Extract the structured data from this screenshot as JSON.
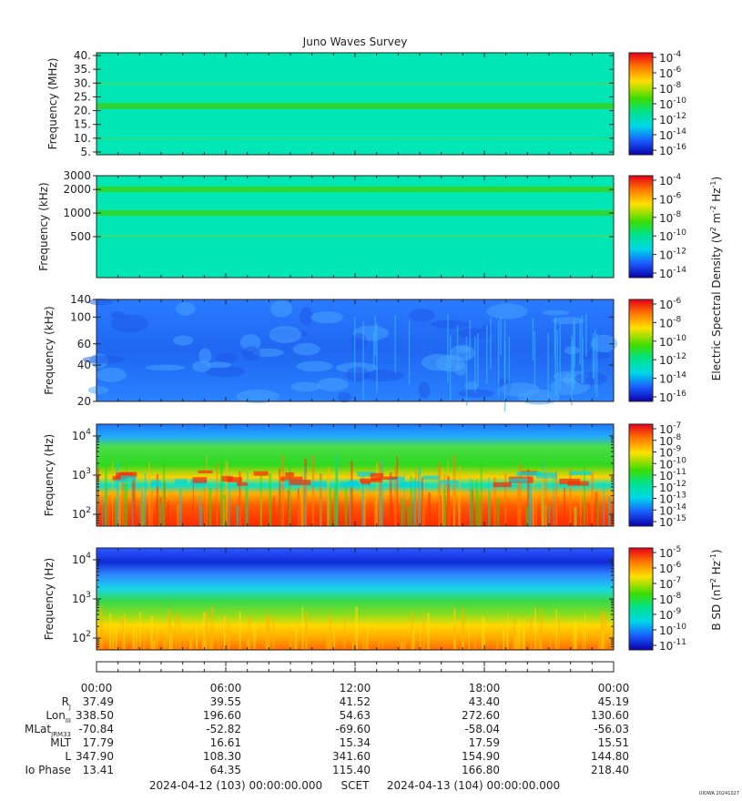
{
  "chart_data": {
    "type": "heatmap",
    "title": "Juno Waves Survey",
    "time_ticks": [
      "00:00",
      "06:00",
      "12:00",
      "18:00",
      "00:00"
    ],
    "panels": [
      {
        "ylabel": "Frequency (MHz)",
        "yscale": "linear",
        "ylim": [
          4,
          41
        ],
        "yticks": [
          "40.",
          "35.",
          "30.",
          "25.",
          "20.",
          "15.",
          "10.",
          "5."
        ],
        "ytick_values": [
          40,
          35,
          30,
          25,
          20,
          15,
          10,
          5
        ],
        "colorbar_ticks": [
          "-4",
          "-6",
          "-8",
          "-10",
          "-12",
          "-14",
          "-16"
        ]
      },
      {
        "ylabel": "Frequency (kHz)",
        "yscale": "log",
        "ylim": [
          150,
          3000
        ],
        "yticks": [
          "3000",
          "2000",
          "1000",
          "500"
        ],
        "ytick_values": [
          3000,
          2000,
          1000,
          500
        ],
        "colorbar_ticks": [
          "-4",
          "-6",
          "-8",
          "-10",
          "-12",
          "-14"
        ]
      },
      {
        "ylabel": "Frequency (kHz)",
        "yscale": "log",
        "ylim": [
          20,
          140
        ],
        "yticks": [
          "140",
          "100",
          "60",
          "40",
          "20"
        ],
        "ytick_values": [
          140,
          100,
          60,
          40,
          20
        ],
        "colorbar_ticks": [
          "-6",
          "-8",
          "-10",
          "-12",
          "-14",
          "-16"
        ]
      },
      {
        "ylabel": "Frequency (Hz)",
        "yscale": "log",
        "ylim": [
          50,
          20000
        ],
        "yticks": [
          "4",
          "3",
          "2"
        ],
        "ytick_values": [
          10000,
          1000,
          100
        ],
        "colorbar_ticks": [
          "-7",
          "-8",
          "-9",
          "-10",
          "-11",
          "-12",
          "-13",
          "-14",
          "-15"
        ]
      },
      {
        "ylabel": "Frequency (Hz)",
        "yscale": "log",
        "ylim": [
          50,
          20000
        ],
        "yticks": [
          "4",
          "3",
          "2"
        ],
        "ytick_values": [
          10000,
          1000,
          100
        ],
        "colorbar_ticks": [
          "-5",
          "-6",
          "-7",
          "-8",
          "-9",
          "-10",
          "-11"
        ]
      }
    ],
    "colorbar_label_electric_1": "Electric Spectral Density (V",
    "colorbar_label_electric_2": "m",
    "colorbar_label_electric_3": "Hz",
    "colorbar_label_magnetic_1": "B SD (nT",
    "colorbar_label_magnetic_2": "Hz",
    "ephemeris": [
      {
        "label": "R",
        "sub": "J",
        "values": [
          "37.49",
          "39.55",
          "41.52",
          "43.40",
          "45.19"
        ]
      },
      {
        "label": "Lon",
        "sub": "III",
        "values": [
          "338.50",
          "196.60",
          "54.63",
          "272.60",
          "130.60"
        ]
      },
      {
        "label": "MLat",
        "sub": "JRM33",
        "values": [
          "-70.84",
          "-52.82",
          "-69.60",
          "-58.04",
          "-56.03"
        ]
      },
      {
        "label": "MLT",
        "sub": "",
        "values": [
          "17.79",
          "16.61",
          "15.34",
          "17.59",
          "15.51"
        ]
      },
      {
        "label": "L",
        "sub": "",
        "values": [
          "347.90",
          "108.30",
          "341.60",
          "154.90",
          "144.80"
        ]
      },
      {
        "label": "Io Phase",
        "sub": "",
        "values": [
          "13.41",
          "64.35",
          "115.40",
          "166.80",
          "218.40"
        ]
      }
    ],
    "footer_start": "2024-04-12 (103) 00:00:00.000",
    "footer_scet": "SCET",
    "footer_end": "2024-04-13 (104) 00:00:00.000",
    "stamp": "UIOWA 20241027"
  }
}
